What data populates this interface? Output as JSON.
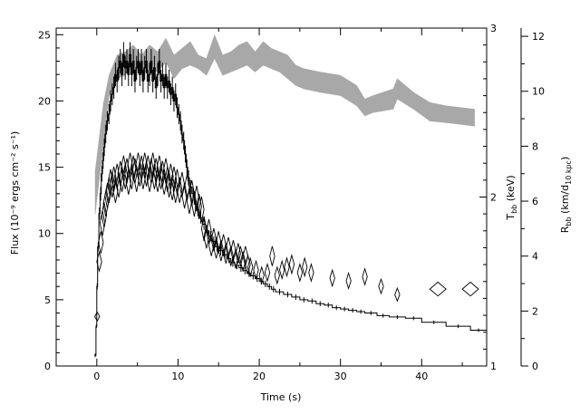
{
  "chart_data": {
    "type": "line",
    "xlabel": "Time (s)",
    "ylabel_left": "Flux (10⁻⁹ ergs cm⁻² s⁻¹)",
    "ylabel_kt": "T_bb (keV)",
    "ylabel_r": "R_bb (km/d_10 kpc)",
    "xlim": [
      -5,
      48
    ],
    "ylim_flux": [
      0,
      25.5
    ],
    "ylim_kt": [
      1,
      3
    ],
    "ylim_r": [
      0,
      12.3
    ],
    "x_ticks": [
      0,
      10,
      20,
      30,
      40
    ],
    "flux_ticks": [
      0,
      5,
      10,
      15,
      20,
      25
    ],
    "kt_ticks": [
      1,
      2,
      3
    ],
    "r_ticks": [
      0,
      2,
      4,
      6,
      8,
      10,
      12
    ],
    "flux_steps": [
      [
        -0.3,
        0.1,
        0.8
      ],
      [
        -0.1,
        0.05,
        3.0
      ],
      [
        0.0,
        0.05,
        6.0
      ],
      [
        0.1,
        0.05,
        9.0
      ],
      [
        0.25,
        0.05,
        11.5
      ],
      [
        0.4,
        0.05,
        13.0
      ],
      [
        0.55,
        0.05,
        14.5
      ],
      [
        0.7,
        0.05,
        15.5
      ],
      [
        0.85,
        0.05,
        16.5
      ],
      [
        1.0,
        0.05,
        17.5
      ],
      [
        1.2,
        0.05,
        18.5
      ],
      [
        1.4,
        0.05,
        19.0
      ],
      [
        1.6,
        0.05,
        20.0
      ],
      [
        1.8,
        0.05,
        20.5
      ],
      [
        2.0,
        0.05,
        21.0
      ],
      [
        2.2,
        0.05,
        22.0
      ],
      [
        2.4,
        0.05,
        21.5
      ],
      [
        2.6,
        0.05,
        22.5
      ],
      [
        2.8,
        0.05,
        23.0
      ],
      [
        3.0,
        0.05,
        22.0
      ],
      [
        3.2,
        0.05,
        23.5
      ],
      [
        3.4,
        0.05,
        22.5
      ],
      [
        3.6,
        0.05,
        23.0
      ],
      [
        3.8,
        0.05,
        22.0
      ],
      [
        4.0,
        0.05,
        23.5
      ],
      [
        4.2,
        0.05,
        22.0
      ],
      [
        4.4,
        0.05,
        23.0
      ],
      [
        4.6,
        0.05,
        21.5
      ],
      [
        4.8,
        0.05,
        22.5
      ],
      [
        5.0,
        0.05,
        23.0
      ],
      [
        5.2,
        0.05,
        22.0
      ],
      [
        5.4,
        0.05,
        23.0
      ],
      [
        5.6,
        0.05,
        21.5
      ],
      [
        5.8,
        0.05,
        22.5
      ],
      [
        6.0,
        0.05,
        23.0
      ],
      [
        6.2,
        0.05,
        21.5
      ],
      [
        6.4,
        0.05,
        22.0
      ],
      [
        6.6,
        0.05,
        23.0
      ],
      [
        6.8,
        0.05,
        21.5
      ],
      [
        7.0,
        0.05,
        22.5
      ],
      [
        7.2,
        0.05,
        21.0
      ],
      [
        7.4,
        0.05,
        22.0
      ],
      [
        7.6,
        0.05,
        23.0
      ],
      [
        7.8,
        0.05,
        21.5
      ],
      [
        8.0,
        0.05,
        22.0
      ],
      [
        8.2,
        0.05,
        21.0
      ],
      [
        8.4,
        0.05,
        22.0
      ],
      [
        8.6,
        0.05,
        21.0
      ],
      [
        8.8,
        0.05,
        21.5
      ],
      [
        9.0,
        0.05,
        20.5
      ],
      [
        9.2,
        0.05,
        21.0
      ],
      [
        9.4,
        0.05,
        20.0
      ],
      [
        9.6,
        0.05,
        20.5
      ],
      [
        9.8,
        0.05,
        19.5
      ],
      [
        10.0,
        0.05,
        19.0
      ],
      [
        10.2,
        0.05,
        18.5
      ],
      [
        10.4,
        0.05,
        17.5
      ],
      [
        10.6,
        0.05,
        17.0
      ],
      [
        10.8,
        0.05,
        16.0
      ],
      [
        11.0,
        0.05,
        15.0
      ],
      [
        11.2,
        0.05,
        14.2
      ],
      [
        11.4,
        0.05,
        13.5
      ],
      [
        11.7,
        0.05,
        13.0
      ],
      [
        12.0,
        0.05,
        12.2
      ],
      [
        12.3,
        0.05,
        11.8
      ],
      [
        12.6,
        0.05,
        11.2
      ],
      [
        13.0,
        0.05,
        10.7
      ],
      [
        13.4,
        0.05,
        10.2
      ],
      [
        13.8,
        0.05,
        9.8
      ],
      [
        14.2,
        0.05,
        9.4
      ],
      [
        14.6,
        0.05,
        9.0
      ],
      [
        15.0,
        0.05,
        8.7
      ],
      [
        15.5,
        0.05,
        8.4
      ],
      [
        16.0,
        0.05,
        8.1
      ],
      [
        16.5,
        0.05,
        7.8
      ],
      [
        17.0,
        0.05,
        7.6
      ],
      [
        17.5,
        0.05,
        7.4
      ],
      [
        18.0,
        0.05,
        7.2
      ],
      [
        18.5,
        0.05,
        7.0
      ],
      [
        19.0,
        0.05,
        6.8
      ],
      [
        19.5,
        0.05,
        6.6
      ],
      [
        20.0,
        0.05,
        6.4
      ],
      [
        20.5,
        0.05,
        6.2
      ],
      [
        21.0,
        0.05,
        6.0
      ],
      [
        21.5,
        0.05,
        5.8
      ],
      [
        22.0,
        0.05,
        5.6
      ],
      [
        23.0,
        0.05,
        5.4
      ],
      [
        24.0,
        0.05,
        5.2
      ],
      [
        25.0,
        0.05,
        5.0
      ],
      [
        26.0,
        0.05,
        4.9
      ],
      [
        27.0,
        0.05,
        4.7
      ],
      [
        28.0,
        0.05,
        4.6
      ],
      [
        29.0,
        0.05,
        4.4
      ],
      [
        30.0,
        0.05,
        4.3
      ],
      [
        31.0,
        0.05,
        4.2
      ],
      [
        32.0,
        0.05,
        4.1
      ],
      [
        33.0,
        0.05,
        4.0
      ],
      [
        34.5,
        0.05,
        3.8
      ],
      [
        36.0,
        0.05,
        3.7
      ],
      [
        38.0,
        0.05,
        3.6
      ],
      [
        40.0,
        0.05,
        3.3
      ],
      [
        43.0,
        0.05,
        3.0
      ],
      [
        46.0,
        0.05,
        2.7
      ],
      [
        48.0,
        0.05,
        2.7
      ]
    ],
    "kt_band": {
      "x": [
        -0.2,
        0.3,
        0.8,
        1.5,
        2.5,
        3.5,
        4.5,
        5.5,
        6.5,
        7.5,
        8.5,
        9.5,
        10.5,
        11.5,
        12.5,
        13.5,
        14.5,
        15.5,
        16.5,
        17.5,
        18.5,
        19.5,
        20.5,
        21.5,
        22.5,
        23.5,
        24.5,
        25.5,
        27.5,
        30.0,
        32.0,
        33.0,
        34.0,
        36.5,
        37.0,
        39.0,
        41.0,
        43.0,
        46.5
      ],
      "lo": [
        1.9,
        2.1,
        2.3,
        2.6,
        2.7,
        2.72,
        2.78,
        2.72,
        2.76,
        2.74,
        2.8,
        2.7,
        2.76,
        2.78,
        2.76,
        2.72,
        2.82,
        2.72,
        2.74,
        2.76,
        2.78,
        2.74,
        2.78,
        2.76,
        2.74,
        2.7,
        2.66,
        2.64,
        2.62,
        2.6,
        2.54,
        2.48,
        2.5,
        2.52,
        2.58,
        2.52,
        2.45,
        2.44,
        2.42
      ],
      "hi": [
        2.15,
        2.35,
        2.55,
        2.72,
        2.84,
        2.86,
        2.9,
        2.84,
        2.9,
        2.86,
        2.94,
        2.84,
        2.88,
        2.92,
        2.84,
        2.82,
        2.96,
        2.84,
        2.86,
        2.9,
        2.92,
        2.86,
        2.92,
        2.88,
        2.86,
        2.84,
        2.78,
        2.76,
        2.74,
        2.72,
        2.66,
        2.58,
        2.6,
        2.64,
        2.7,
        2.62,
        2.56,
        2.54,
        2.52
      ]
    },
    "r_points": [
      [
        0.05,
        1.8,
        0.6
      ],
      [
        0.3,
        3.8,
        0.6
      ],
      [
        0.5,
        4.5,
        0.6
      ],
      [
        0.7,
        5.2,
        0.6
      ],
      [
        0.9,
        5.5,
        0.6
      ],
      [
        1.1,
        5.9,
        0.6
      ],
      [
        1.3,
        6.2,
        0.6
      ],
      [
        1.5,
        6.4,
        0.6
      ],
      [
        1.7,
        6.7,
        0.6
      ],
      [
        1.9,
        6.6,
        0.6
      ],
      [
        2.1,
        6.8,
        0.6
      ],
      [
        2.3,
        6.4,
        0.6
      ],
      [
        2.5,
        6.9,
        0.6
      ],
      [
        2.7,
        6.6,
        0.6
      ],
      [
        2.9,
        7.0,
        0.6
      ],
      [
        3.1,
        6.8,
        0.6
      ],
      [
        3.3,
        7.2,
        0.6
      ],
      [
        3.5,
        6.9,
        0.6
      ],
      [
        3.7,
        7.1,
        0.6
      ],
      [
        3.9,
        6.7,
        0.6
      ],
      [
        4.1,
        7.3,
        0.6
      ],
      [
        4.3,
        6.9,
        0.6
      ],
      [
        4.5,
        7.2,
        0.6
      ],
      [
        4.7,
        7.1,
        0.6
      ],
      [
        4.9,
        6.8,
        0.6
      ],
      [
        5.1,
        7.3,
        0.6
      ],
      [
        5.3,
        7.0,
        0.6
      ],
      [
        5.5,
        7.2,
        0.6
      ],
      [
        5.7,
        6.9,
        0.6
      ],
      [
        5.9,
        7.3,
        0.6
      ],
      [
        6.1,
        7.0,
        0.6
      ],
      [
        6.3,
        7.2,
        0.6
      ],
      [
        6.5,
        6.8,
        0.6
      ],
      [
        6.7,
        7.1,
        0.6
      ],
      [
        6.9,
        7.3,
        0.6
      ],
      [
        7.1,
        6.9,
        0.6
      ],
      [
        7.3,
        7.1,
        0.6
      ],
      [
        7.5,
        6.8,
        0.6
      ],
      [
        7.7,
        7.2,
        0.6
      ],
      [
        7.9,
        6.9,
        0.6
      ],
      [
        8.1,
        7.0,
        0.6
      ],
      [
        8.3,
        6.7,
        0.6
      ],
      [
        8.5,
        7.1,
        0.6
      ],
      [
        8.7,
        6.8,
        0.6
      ],
      [
        8.9,
        6.6,
        0.6
      ],
      [
        9.1,
        6.9,
        0.6
      ],
      [
        9.3,
        6.5,
        0.6
      ],
      [
        9.5,
        6.8,
        0.6
      ],
      [
        9.7,
        6.4,
        0.6
      ],
      [
        9.9,
        6.7,
        0.6
      ],
      [
        10.2,
        6.4,
        0.6
      ],
      [
        10.5,
        6.6,
        0.6
      ],
      [
        10.8,
        6.2,
        0.6
      ],
      [
        11.1,
        6.5,
        0.6
      ],
      [
        11.4,
        6.0,
        0.6
      ],
      [
        11.7,
        6.3,
        0.6
      ],
      [
        12.0,
        5.9,
        0.6
      ],
      [
        12.3,
        6.1,
        0.6
      ],
      [
        12.6,
        5.8,
        0.6
      ],
      [
        12.9,
        5.7,
        0.6
      ],
      [
        13.2,
        5.0,
        0.6
      ],
      [
        13.5,
        4.7,
        0.6
      ],
      [
        13.8,
        4.9,
        0.6
      ],
      [
        14.1,
        4.4,
        0.6
      ],
      [
        14.4,
        4.6,
        0.6
      ],
      [
        14.7,
        4.3,
        0.6
      ],
      [
        15.0,
        4.5,
        0.6
      ],
      [
        15.3,
        4.2,
        0.6
      ],
      [
        15.6,
        4.4,
        0.6
      ],
      [
        15.9,
        4.1,
        0.6
      ],
      [
        16.2,
        4.3,
        0.6
      ],
      [
        16.5,
        4.0,
        0.6
      ],
      [
        16.8,
        4.2,
        0.6
      ],
      [
        17.1,
        3.9,
        0.6
      ],
      [
        17.4,
        4.1,
        0.6
      ],
      [
        17.7,
        4.0,
        0.6
      ],
      [
        18.0,
        3.8,
        0.6
      ],
      [
        18.3,
        4.0,
        0.6
      ],
      [
        18.6,
        3.7,
        0.6
      ],
      [
        18.9,
        3.6,
        0.6
      ],
      [
        19.6,
        3.5,
        0.6
      ],
      [
        20.3,
        3.3,
        0.6
      ],
      [
        21.0,
        3.4,
        0.6
      ],
      [
        21.6,
        4.0,
        0.6
      ],
      [
        22.2,
        3.3,
        0.6
      ],
      [
        22.8,
        3.5,
        0.6
      ],
      [
        23.4,
        3.6,
        0.6
      ],
      [
        24.0,
        3.7,
        0.6
      ],
      [
        25.0,
        3.4,
        0.6
      ],
      [
        25.6,
        3.6,
        0.6
      ],
      [
        26.4,
        3.4,
        0.6
      ],
      [
        29.0,
        3.2,
        0.6
      ],
      [
        31.0,
        3.1,
        0.6
      ],
      [
        33.0,
        3.25,
        0.6
      ],
      [
        35.0,
        2.9,
        0.6
      ],
      [
        37.0,
        2.6,
        0.6
      ],
      [
        42.0,
        2.8,
        2.0
      ],
      [
        46.0,
        2.8,
        2.0
      ]
    ]
  }
}
